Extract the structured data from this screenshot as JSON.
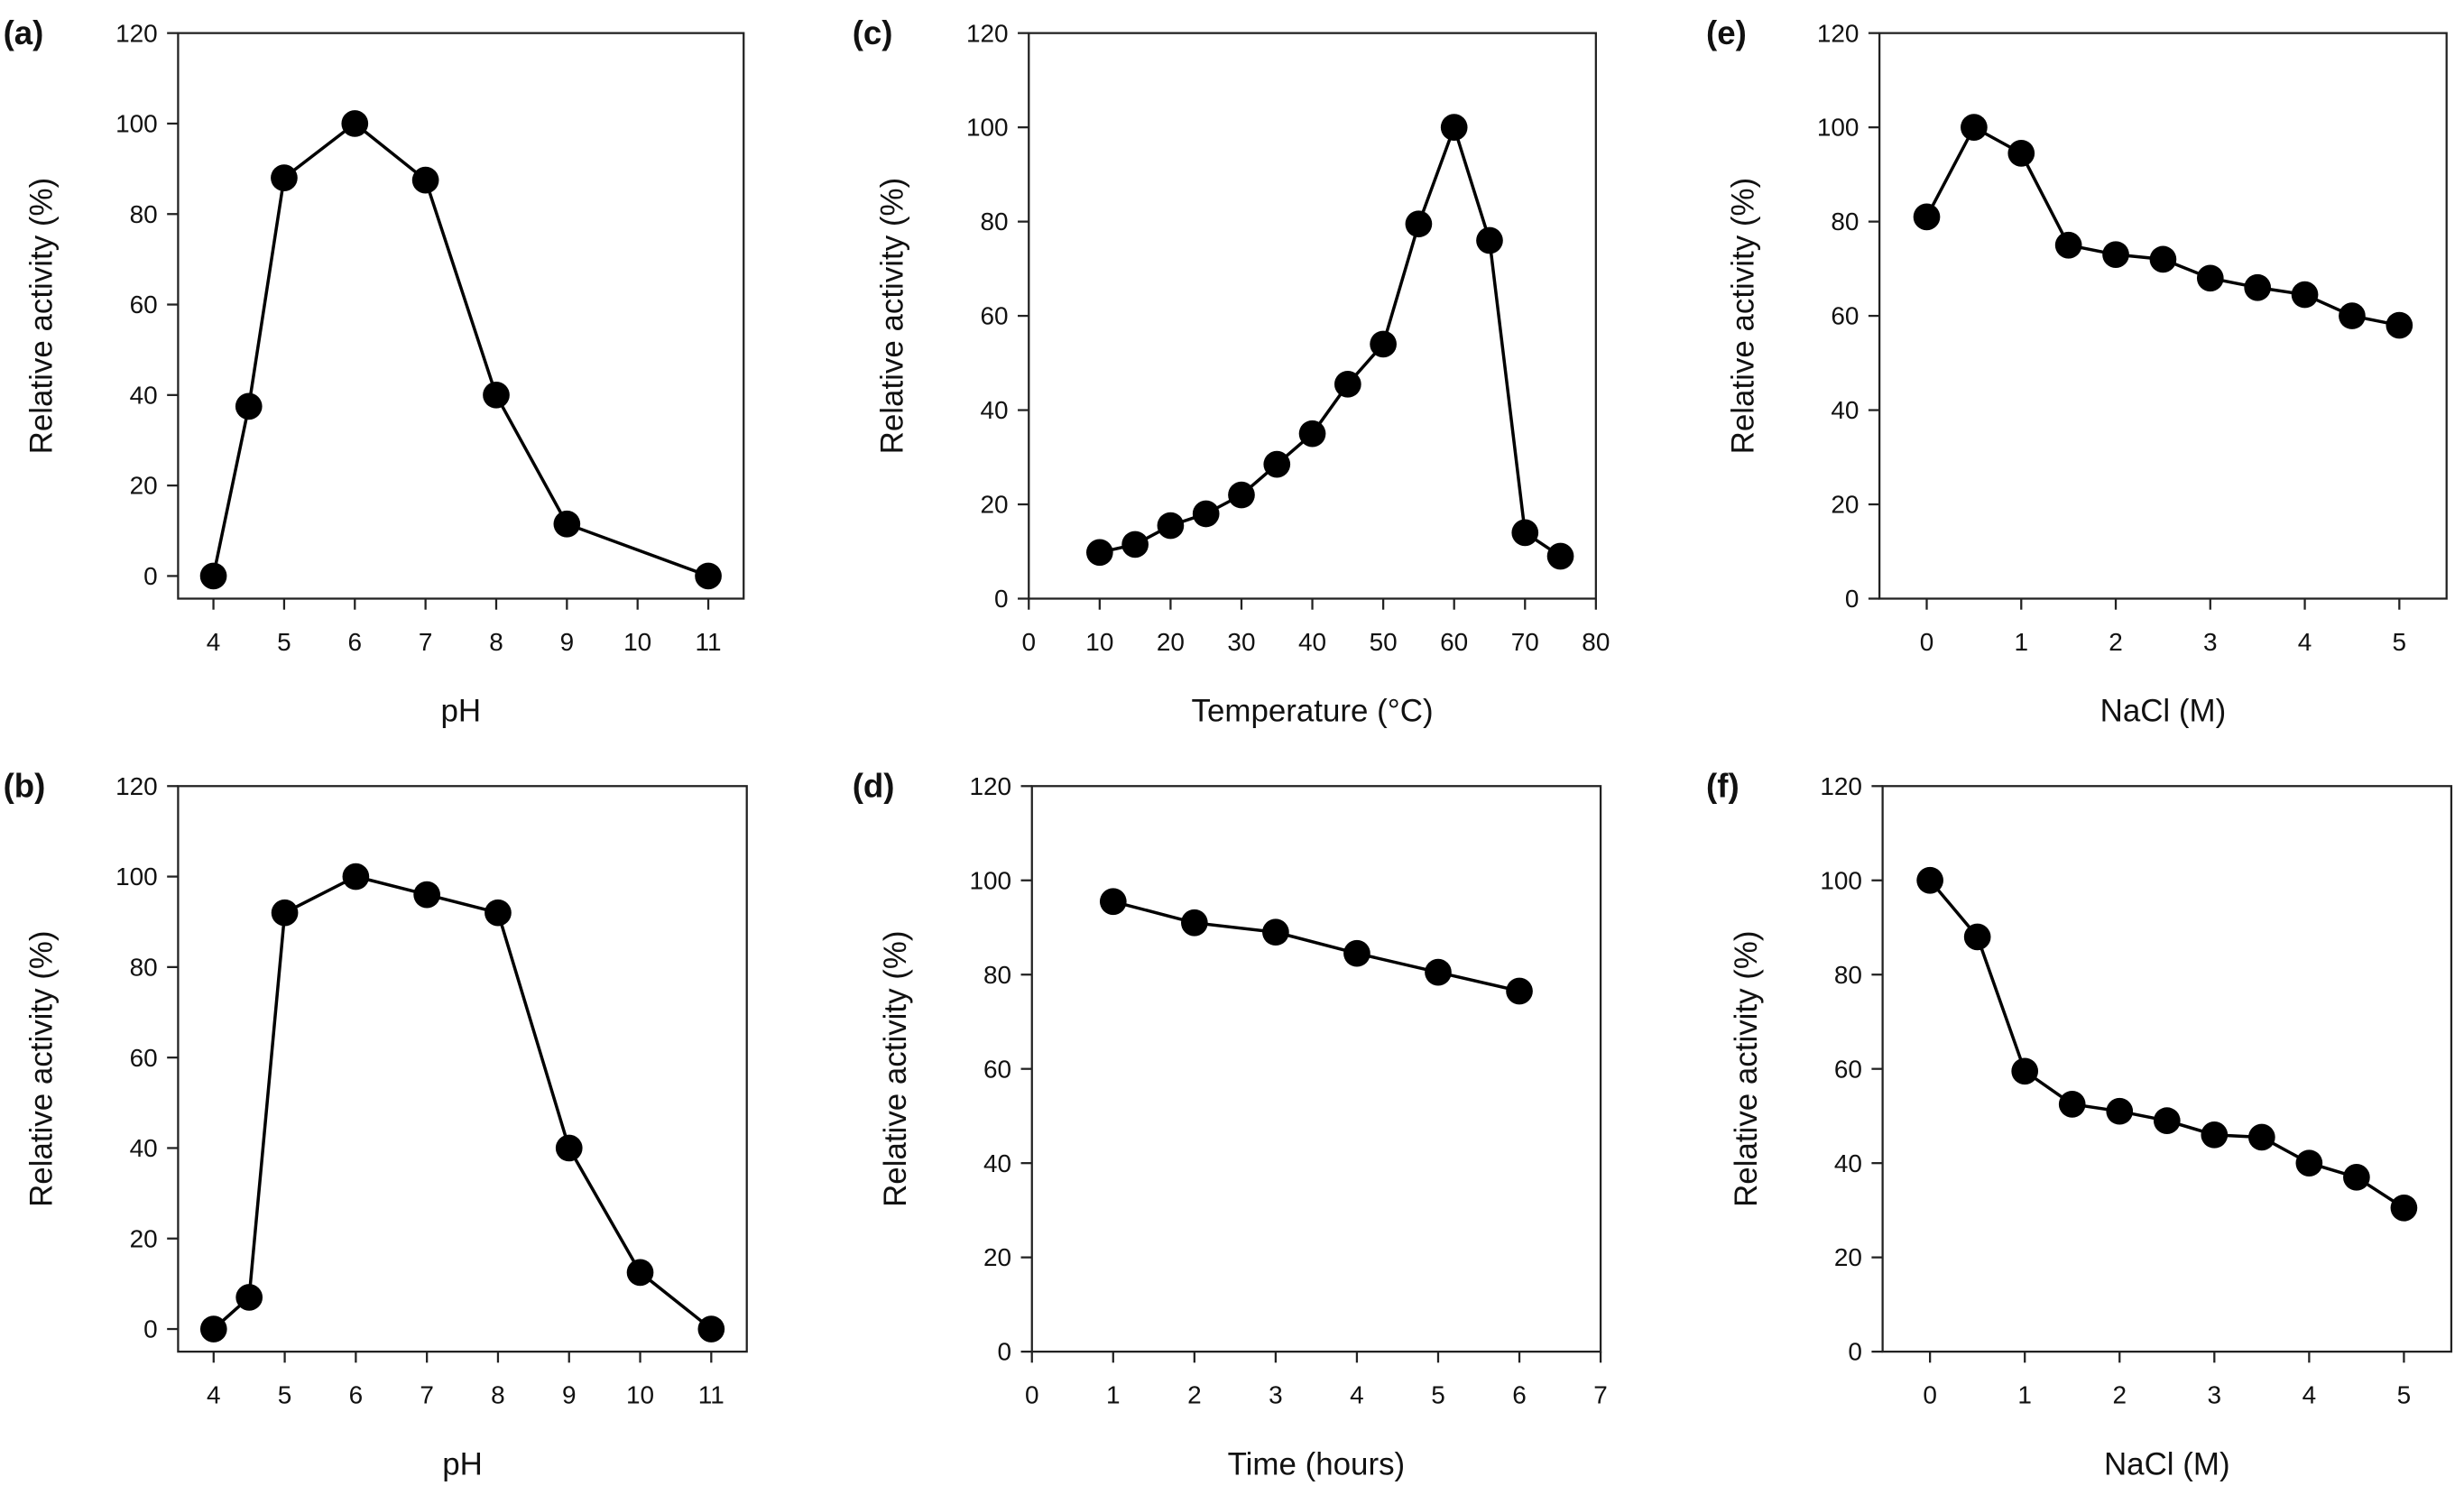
{
  "chart_data": [
    {
      "type": "line",
      "panel": "(a)",
      "xlabel": "pH",
      "ylabel": "Relative activity (%)",
      "xlim": [
        3.5,
        11.5
      ],
      "ylim": [
        -5,
        120
      ],
      "xticks": [
        4,
        5,
        6,
        7,
        8,
        9,
        10,
        11
      ],
      "yticks": [
        0,
        20,
        40,
        60,
        80,
        100,
        120
      ],
      "x": [
        4,
        4.5,
        5,
        6,
        7,
        8,
        9,
        11
      ],
      "y": [
        0,
        37.5,
        88,
        100,
        87.5,
        40,
        11.5,
        0
      ]
    },
    {
      "type": "line",
      "panel": "(b)",
      "xlabel": "pH",
      "ylabel": "Relative activity (%)",
      "xlim": [
        3.5,
        11.5
      ],
      "ylim": [
        -5,
        120
      ],
      "xticks": [
        4,
        5,
        6,
        7,
        8,
        9,
        10,
        11
      ],
      "yticks": [
        0,
        20,
        40,
        60,
        80,
        100,
        120
      ],
      "x": [
        4,
        4.5,
        5,
        6,
        7,
        8,
        9,
        10,
        11
      ],
      "y": [
        0,
        7,
        92,
        100,
        96,
        92,
        40,
        12.5,
        0
      ]
    },
    {
      "type": "line",
      "panel": "(c)",
      "xlabel": "Temperature (°C)",
      "ylabel": "Relative activity (%)",
      "xlim": [
        0,
        80
      ],
      "ylim": [
        0,
        120
      ],
      "xticks": [
        0,
        10,
        20,
        30,
        40,
        50,
        60,
        70,
        80
      ],
      "yticks": [
        0,
        20,
        40,
        60,
        80,
        100,
        120
      ],
      "x": [
        10,
        15,
        20,
        25,
        30,
        35,
        40,
        45,
        50,
        55,
        60,
        65,
        70,
        75
      ],
      "y": [
        9.8,
        11.5,
        15.5,
        18,
        22,
        28.5,
        35,
        45.5,
        54,
        79.5,
        100,
        76,
        14,
        9
      ]
    },
    {
      "type": "line",
      "panel": "(d)",
      "xlabel": "Time (hours)",
      "ylabel": "Relative activity (%)",
      "xlim": [
        0,
        7
      ],
      "ylim": [
        0,
        120
      ],
      "xticks": [
        0,
        1,
        2,
        3,
        4,
        5,
        6,
        7
      ],
      "yticks": [
        0,
        20,
        40,
        60,
        80,
        100,
        120
      ],
      "x": [
        1,
        2,
        3,
        4,
        5,
        6
      ],
      "y": [
        95.5,
        91,
        89,
        84.5,
        80.5,
        76.5
      ]
    },
    {
      "type": "line",
      "panel": "(e)",
      "xlabel": "NaCl (M)",
      "ylabel": "Relative activity (%)",
      "xlim": [
        -0.5,
        5.5
      ],
      "ylim": [
        0,
        120
      ],
      "xticks": [
        0,
        1,
        2,
        3,
        4,
        5
      ],
      "yticks": [
        0,
        20,
        40,
        60,
        80,
        100,
        120
      ],
      "x": [
        0,
        0.5,
        1,
        1.5,
        2,
        2.5,
        3,
        3.5,
        4,
        4.5,
        5
      ],
      "y": [
        81,
        100,
        94.5,
        75,
        73,
        72,
        68,
        66,
        64.5,
        60,
        58
      ]
    },
    {
      "type": "line",
      "panel": "(f)",
      "xlabel": "NaCl (M)",
      "ylabel": "Relative activity (%)",
      "xlim": [
        -0.5,
        5.5
      ],
      "ylim": [
        0,
        120
      ],
      "xticks": [
        0,
        1,
        2,
        3,
        4,
        5
      ],
      "yticks": [
        0,
        20,
        40,
        60,
        80,
        100,
        120
      ],
      "x": [
        0,
        0.5,
        1,
        1.5,
        2,
        2.5,
        3,
        3.5,
        4,
        4.5,
        5
      ],
      "y": [
        100,
        88,
        59.5,
        52.5,
        51,
        49,
        46,
        45.5,
        40,
        37,
        30.5
      ]
    }
  ]
}
